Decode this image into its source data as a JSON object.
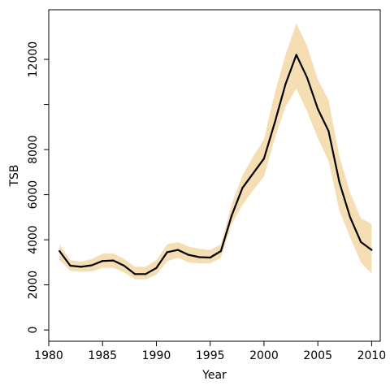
{
  "chart_data": {
    "type": "line",
    "xlabel": "Year",
    "ylabel": "TSB",
    "xlim": [
      1980,
      2010.8
    ],
    "ylim": [
      -500,
      14200
    ],
    "x_ticks": [
      1980,
      1985,
      1990,
      1995,
      2000,
      2005,
      2010
    ],
    "y_ticks": [
      0,
      2000,
      4000,
      6000,
      8000,
      10000,
      12000
    ],
    "y_tick_labels": [
      "0",
      "2000",
      "4000",
      "6000",
      "8000",
      "",
      "12000"
    ],
    "grid": false,
    "colors": {
      "line": "#000000",
      "band": "#f5deb3"
    },
    "series": [
      {
        "x": [
          1981,
          1982,
          1983,
          1984,
          1985,
          1986,
          1987,
          1988,
          1989,
          1990,
          1991,
          1992,
          1993,
          1994,
          1995,
          1996,
          1997,
          1998,
          1999,
          2000,
          2001,
          2002,
          2003,
          2004,
          2005,
          2006,
          2007,
          2008,
          2009,
          2010
        ],
        "y": [
          3500,
          2850,
          2800,
          2870,
          3060,
          3080,
          2850,
          2480,
          2480,
          2750,
          3450,
          3550,
          3330,
          3230,
          3210,
          3500,
          5080,
          6300,
          6950,
          7600,
          9200,
          10900,
          12200,
          11200,
          9800,
          8820,
          6550,
          5000,
          3900,
          3550
        ],
        "lower": [
          3100,
          2620,
          2580,
          2600,
          2750,
          2750,
          2550,
          2250,
          2250,
          2450,
          3050,
          3200,
          3000,
          2950,
          2950,
          3200,
          4700,
          5550,
          6200,
          6800,
          8500,
          9900,
          10700,
          9700,
          8500,
          7500,
          5300,
          4100,
          3000,
          2500
        ],
        "upper": [
          3800,
          3100,
          3030,
          3150,
          3380,
          3400,
          3150,
          2800,
          2800,
          3100,
          3800,
          3900,
          3700,
          3600,
          3550,
          3800,
          5600,
          6850,
          7700,
          8450,
          10500,
          12200,
          13600,
          12600,
          11100,
          10200,
          7700,
          6100,
          4950,
          4700
        ]
      }
    ]
  }
}
